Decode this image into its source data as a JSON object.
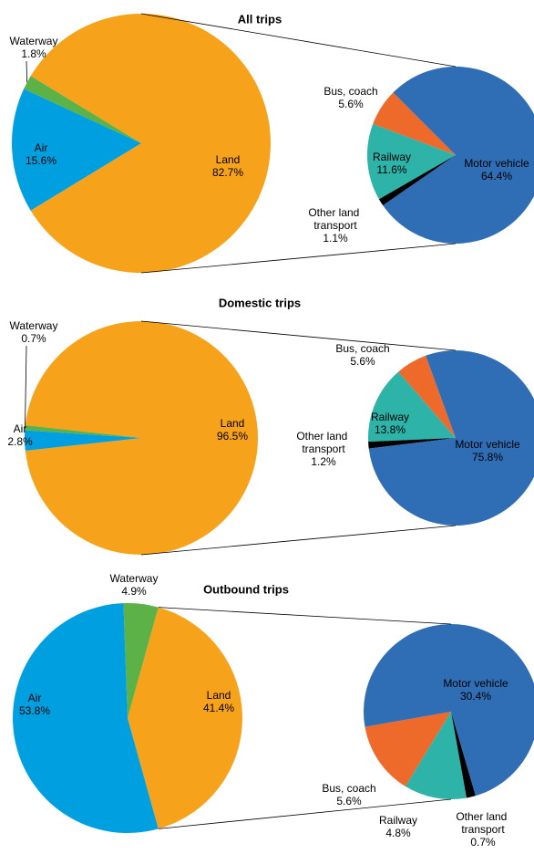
{
  "chart_data": [
    {
      "type": "pie",
      "title": "All trips",
      "categories": [
        "Land",
        "Waterway",
        "Air"
      ],
      "values": [
        82.7,
        1.8,
        15.6
      ],
      "value_labels": [
        "82.7%",
        "1.8%",
        "15.6%"
      ],
      "colors": [
        "#f7a21b",
        "#5cb247",
        "#00a0e0"
      ],
      "sub": {
        "categories": [
          "Bus, coach",
          "Railway",
          "Other land transport",
          "Motor vehicle"
        ],
        "values": [
          5.6,
          11.6,
          1.1,
          64.4
        ],
        "value_labels": [
          "5.6%",
          "11.6%",
          "1.1%",
          "64.4%"
        ],
        "colors": [
          "#ee6a2b",
          "#2db3a8",
          "#000000",
          "#2f6db5"
        ]
      }
    },
    {
      "type": "pie",
      "title": "Domestic trips",
      "categories": [
        "Land",
        "Waterway",
        "Air"
      ],
      "values": [
        96.5,
        0.7,
        2.8
      ],
      "value_labels": [
        "96.5%",
        "0.7%",
        "2.8%"
      ],
      "colors": [
        "#f7a21b",
        "#5cb247",
        "#00a0e0"
      ],
      "sub": {
        "categories": [
          "Bus, coach",
          "Railway",
          "Other land transport",
          "Motor vehicle"
        ],
        "values": [
          5.6,
          13.8,
          1.2,
          75.8
        ],
        "value_labels": [
          "5.6%",
          "13.8%",
          "1.2%",
          "75.8%"
        ],
        "colors": [
          "#ee6a2b",
          "#2db3a8",
          "#000000",
          "#2f6db5"
        ]
      }
    },
    {
      "type": "pie",
      "title": "Outbound trips",
      "categories": [
        "Land",
        "Waterway",
        "Air"
      ],
      "values": [
        41.4,
        4.9,
        53.8
      ],
      "value_labels": [
        "41.4%",
        "4.9%",
        "53.8%"
      ],
      "colors": [
        "#f7a21b",
        "#5cb247",
        "#00a0e0"
      ],
      "sub": {
        "categories": [
          "Bus, coach",
          "Railway",
          "Other land transport",
          "Motor vehicle"
        ],
        "values": [
          5.6,
          4.8,
          0.7,
          30.4
        ],
        "value_labels": [
          "5.6%",
          "4.8%",
          "0.7%",
          "30.4%"
        ],
        "colors": [
          "#ee6a2b",
          "#2db3a8",
          "#000000",
          "#2f6db5"
        ]
      }
    }
  ]
}
